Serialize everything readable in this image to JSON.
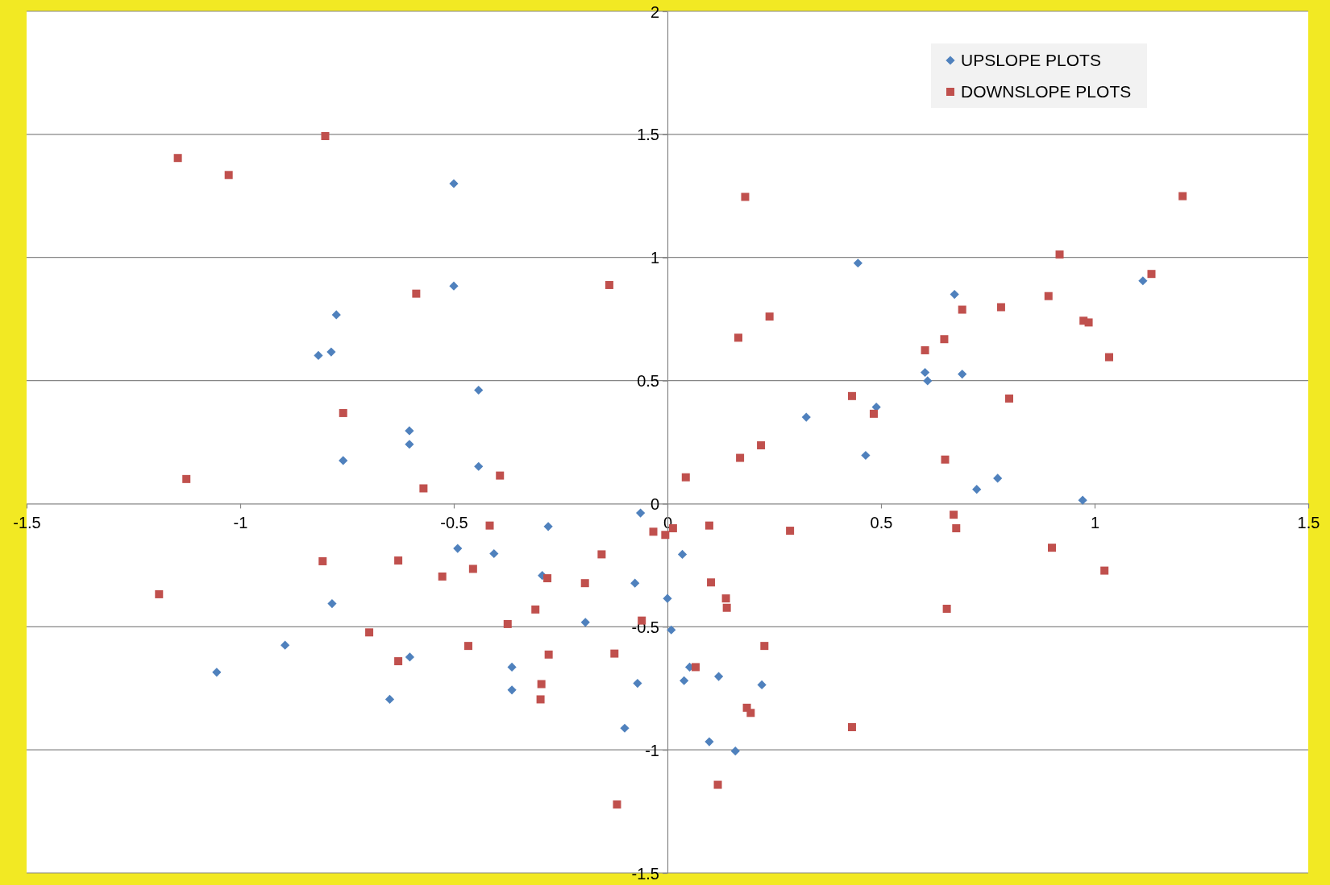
{
  "chart_data": {
    "type": "scatter",
    "xlim": [
      -1.5,
      1.5
    ],
    "ylim": [
      -1.5,
      2
    ],
    "xticks": [
      -1.5,
      -1,
      -0.5,
      0,
      0.5,
      1,
      1.5
    ],
    "yticks": [
      -1.5,
      -1,
      -0.5,
      0,
      0.5,
      1,
      1.5,
      2
    ],
    "grid": "y",
    "legend": "top right",
    "series": [
      {
        "name": "UPSLOPE PLOTS",
        "color": "#4f81bd",
        "marker": "diamond",
        "x": [
          -0.5,
          0.446,
          -0.5,
          0.672,
          1.113,
          -0.775,
          -0.787,
          -0.817,
          0.603,
          0.69,
          0.609,
          -0.442,
          0.489,
          0.325,
          -0.604,
          -0.604,
          0.464,
          -0.759,
          -0.442,
          0.724,
          0.773,
          0.972,
          -0.063,
          -0.279,
          -0.491,
          -0.406,
          0.035,
          -0.293,
          -0.076,
          0,
          -0.785,
          -0.192,
          0.009,
          -0.895,
          -0.603,
          -1.055,
          -0.364,
          0.052,
          0.12,
          0.039,
          -0.07,
          0.221,
          -0.364,
          -0.65,
          -0.1,
          0.098,
          0.159
        ],
        "values": [
          1.3,
          0.977,
          0.884,
          0.85,
          0.905,
          0.767,
          0.616,
          0.602,
          0.533,
          0.526,
          0.499,
          0.461,
          0.392,
          0.351,
          0.296,
          0.241,
          0.196,
          0.175,
          0.151,
          0.058,
          0.103,
          0.014,
          -0.038,
          -0.093,
          -0.182,
          -0.203,
          -0.206,
          -0.292,
          -0.323,
          -0.385,
          -0.406,
          -0.482,
          -0.513,
          -0.575,
          -0.623,
          -0.685,
          -0.664,
          -0.664,
          -0.702,
          -0.719,
          -0.73,
          -0.736,
          -0.757,
          -0.795,
          -0.912,
          -0.967,
          -1.005
        ]
      },
      {
        "name": "DOWNSLOPE PLOTS",
        "color": "#c0504d",
        "marker": "square",
        "x": [
          -0.801,
          -1.146,
          -1.027,
          0.182,
          1.206,
          0.918,
          1.133,
          -0.136,
          -0.588,
          0.892,
          0.239,
          0.781,
          0.69,
          0.974,
          0.986,
          0.166,
          0.648,
          0.603,
          1.034,
          0.432,
          0.8,
          0.483,
          -0.759,
          0.219,
          0.17,
          0.65,
          -0.392,
          0.043,
          -1.126,
          -0.571,
          0.67,
          -0.416,
          0.676,
          0.287,
          0.098,
          0.013,
          -0.033,
          -0.005,
          -0.154,
          -0.807,
          -0.63,
          0.9,
          -0.455,
          1.023,
          -0.527,
          -0.281,
          -0.193,
          0.102,
          -1.19,
          0.137,
          0.139,
          0.654,
          -0.309,
          -0.06,
          -0.374,
          -0.698,
          -0.466,
          0.227,
          -0.278,
          -0.124,
          -0.63,
          0.066,
          -0.295,
          -0.297,
          0.186,
          0.195,
          0.432,
          0.118,
          -0.118
        ],
        "values": [
          1.493,
          1.404,
          1.335,
          1.246,
          1.249,
          1.012,
          0.933,
          0.888,
          0.853,
          0.843,
          0.76,
          0.798,
          0.788,
          0.743,
          0.736,
          0.674,
          0.668,
          0.623,
          0.595,
          0.437,
          0.427,
          0.365,
          0.368,
          0.237,
          0.186,
          0.179,
          0.114,
          0.107,
          0.1,
          0.062,
          -0.045,
          -0.089,
          -0.1,
          -0.11,
          -0.089,
          -0.1,
          -0.114,
          -0.127,
          -0.206,
          -0.234,
          -0.231,
          -0.179,
          -0.265,
          -0.272,
          -0.296,
          -0.303,
          -0.323,
          -0.32,
          -0.368,
          -0.385,
          -0.423,
          -0.427,
          -0.43,
          -0.475,
          -0.489,
          -0.523,
          -0.578,
          -0.578,
          -0.613,
          -0.609,
          -0.64,
          -0.664,
          -0.733,
          -0.795,
          -0.829,
          -0.85,
          -0.908,
          -1.142,
          -1.222
        ]
      }
    ]
  }
}
